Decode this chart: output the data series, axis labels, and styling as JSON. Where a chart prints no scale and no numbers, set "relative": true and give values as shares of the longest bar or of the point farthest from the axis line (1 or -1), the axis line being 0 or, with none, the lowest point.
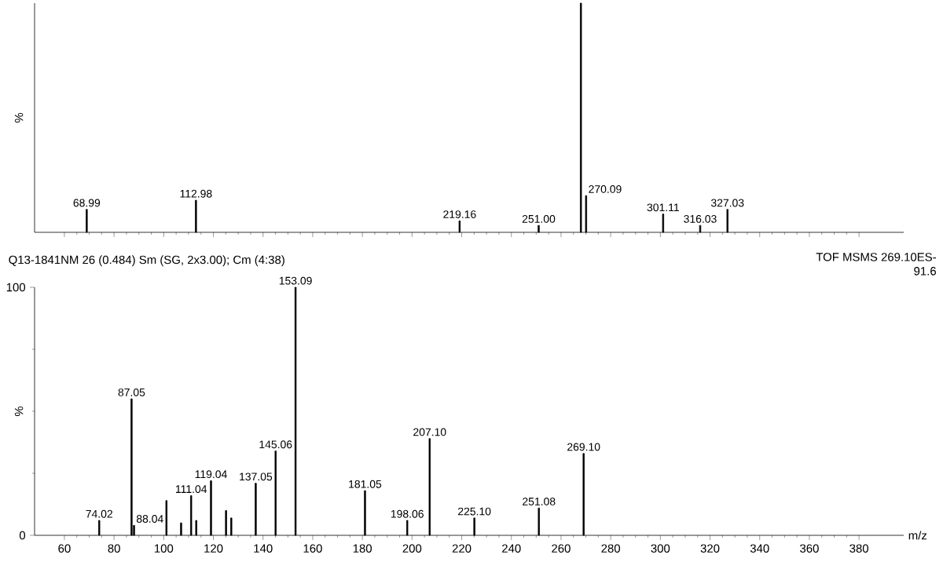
{
  "chart_data": [
    {
      "type": "bar",
      "relative": true,
      "ylabel": "%",
      "xlim": [
        48,
        398
      ],
      "xticks": [
        60,
        80,
        100,
        120,
        140,
        160,
        180,
        200,
        220,
        240,
        260,
        280,
        300,
        320,
        340,
        360,
        380
      ],
      "tick_labels": false,
      "x": [
        68.99,
        112.98,
        219.16,
        251.0,
        268.0,
        270.09,
        301.11,
        316.03,
        327.03
      ],
      "values": [
        0.1,
        0.14,
        0.05,
        0.03,
        1,
        0.16,
        0.08,
        0.03,
        0.1
      ],
      "annotations": [
        {
          "text": "68.99",
          "x": 68.99,
          "y": 0.1
        },
        {
          "text": "112.98",
          "x": 112.98,
          "y": 0.14
        },
        {
          "text": "219.16",
          "x": 219.16,
          "y": 0.05
        },
        {
          "text": "251.00",
          "x": 251.0,
          "y": 0.03
        },
        {
          "text": "270.09",
          "x": 270.09,
          "y": 0.16
        },
        {
          "text": "301.11",
          "x": 301.11,
          "y": 0.08
        },
        {
          "text": "316.03",
          "x": 316.03,
          "y": 0.03
        },
        {
          "text": "327.03",
          "x": 327.03,
          "y": 0.1
        }
      ],
      "color": "#000000"
    },
    {
      "type": "bar",
      "title": "Q13-1841NM  26 (0.484) Sm (SG, 2x3.00); Cm (4:38)",
      "xlabel": "m/z",
      "ylabel": "%",
      "xlim": [
        48,
        398
      ],
      "xticks": [
        60,
        80,
        100,
        120,
        140,
        160,
        180,
        200,
        220,
        240,
        260,
        280,
        300,
        320,
        340,
        360,
        380
      ],
      "ylim": [
        0,
        100
      ],
      "yticks": [
        0,
        100
      ],
      "x": [
        74.02,
        87.05,
        88.04,
        101.1,
        107.0,
        111.04,
        113.1,
        119.04,
        125.1,
        127.2,
        137.05,
        145.06,
        153.09,
        181.05,
        198.06,
        207.1,
        225.1,
        251.08,
        269.1
      ],
      "values": [
        6,
        55,
        4,
        14,
        5,
        16,
        6,
        22,
        10,
        7,
        21,
        34,
        100,
        18,
        6,
        39,
        7,
        11,
        33
      ],
      "annotations": [
        "TOF MSMS 269.10ES-",
        "91.6",
        {
          "text": "74.02",
          "x": 74.02,
          "y": 6
        },
        {
          "text": "87.05",
          "x": 87.05,
          "y": 55
        },
        {
          "text": "88.04",
          "x": 88.04,
          "y": 4
        },
        {
          "text": "111.04",
          "x": 111.04,
          "y": 16
        },
        {
          "text": "119.04",
          "x": 119.04,
          "y": 22
        },
        {
          "text": "137.05",
          "x": 137.05,
          "y": 21
        },
        {
          "text": "145.06",
          "x": 145.06,
          "y": 34
        },
        {
          "text": "153.09",
          "x": 153.09,
          "y": 100
        },
        {
          "text": "181.05",
          "x": 181.05,
          "y": 18
        },
        {
          "text": "198.06",
          "x": 198.06,
          "y": 6
        },
        {
          "text": "207.10",
          "x": 207.1,
          "y": 39
        },
        {
          "text": "225.10",
          "x": 225.1,
          "y": 7
        },
        {
          "text": "251.08",
          "x": 251.08,
          "y": 11
        },
        {
          "text": "269.10",
          "x": 269.1,
          "y": 33
        }
      ],
      "color": "#000000"
    }
  ]
}
